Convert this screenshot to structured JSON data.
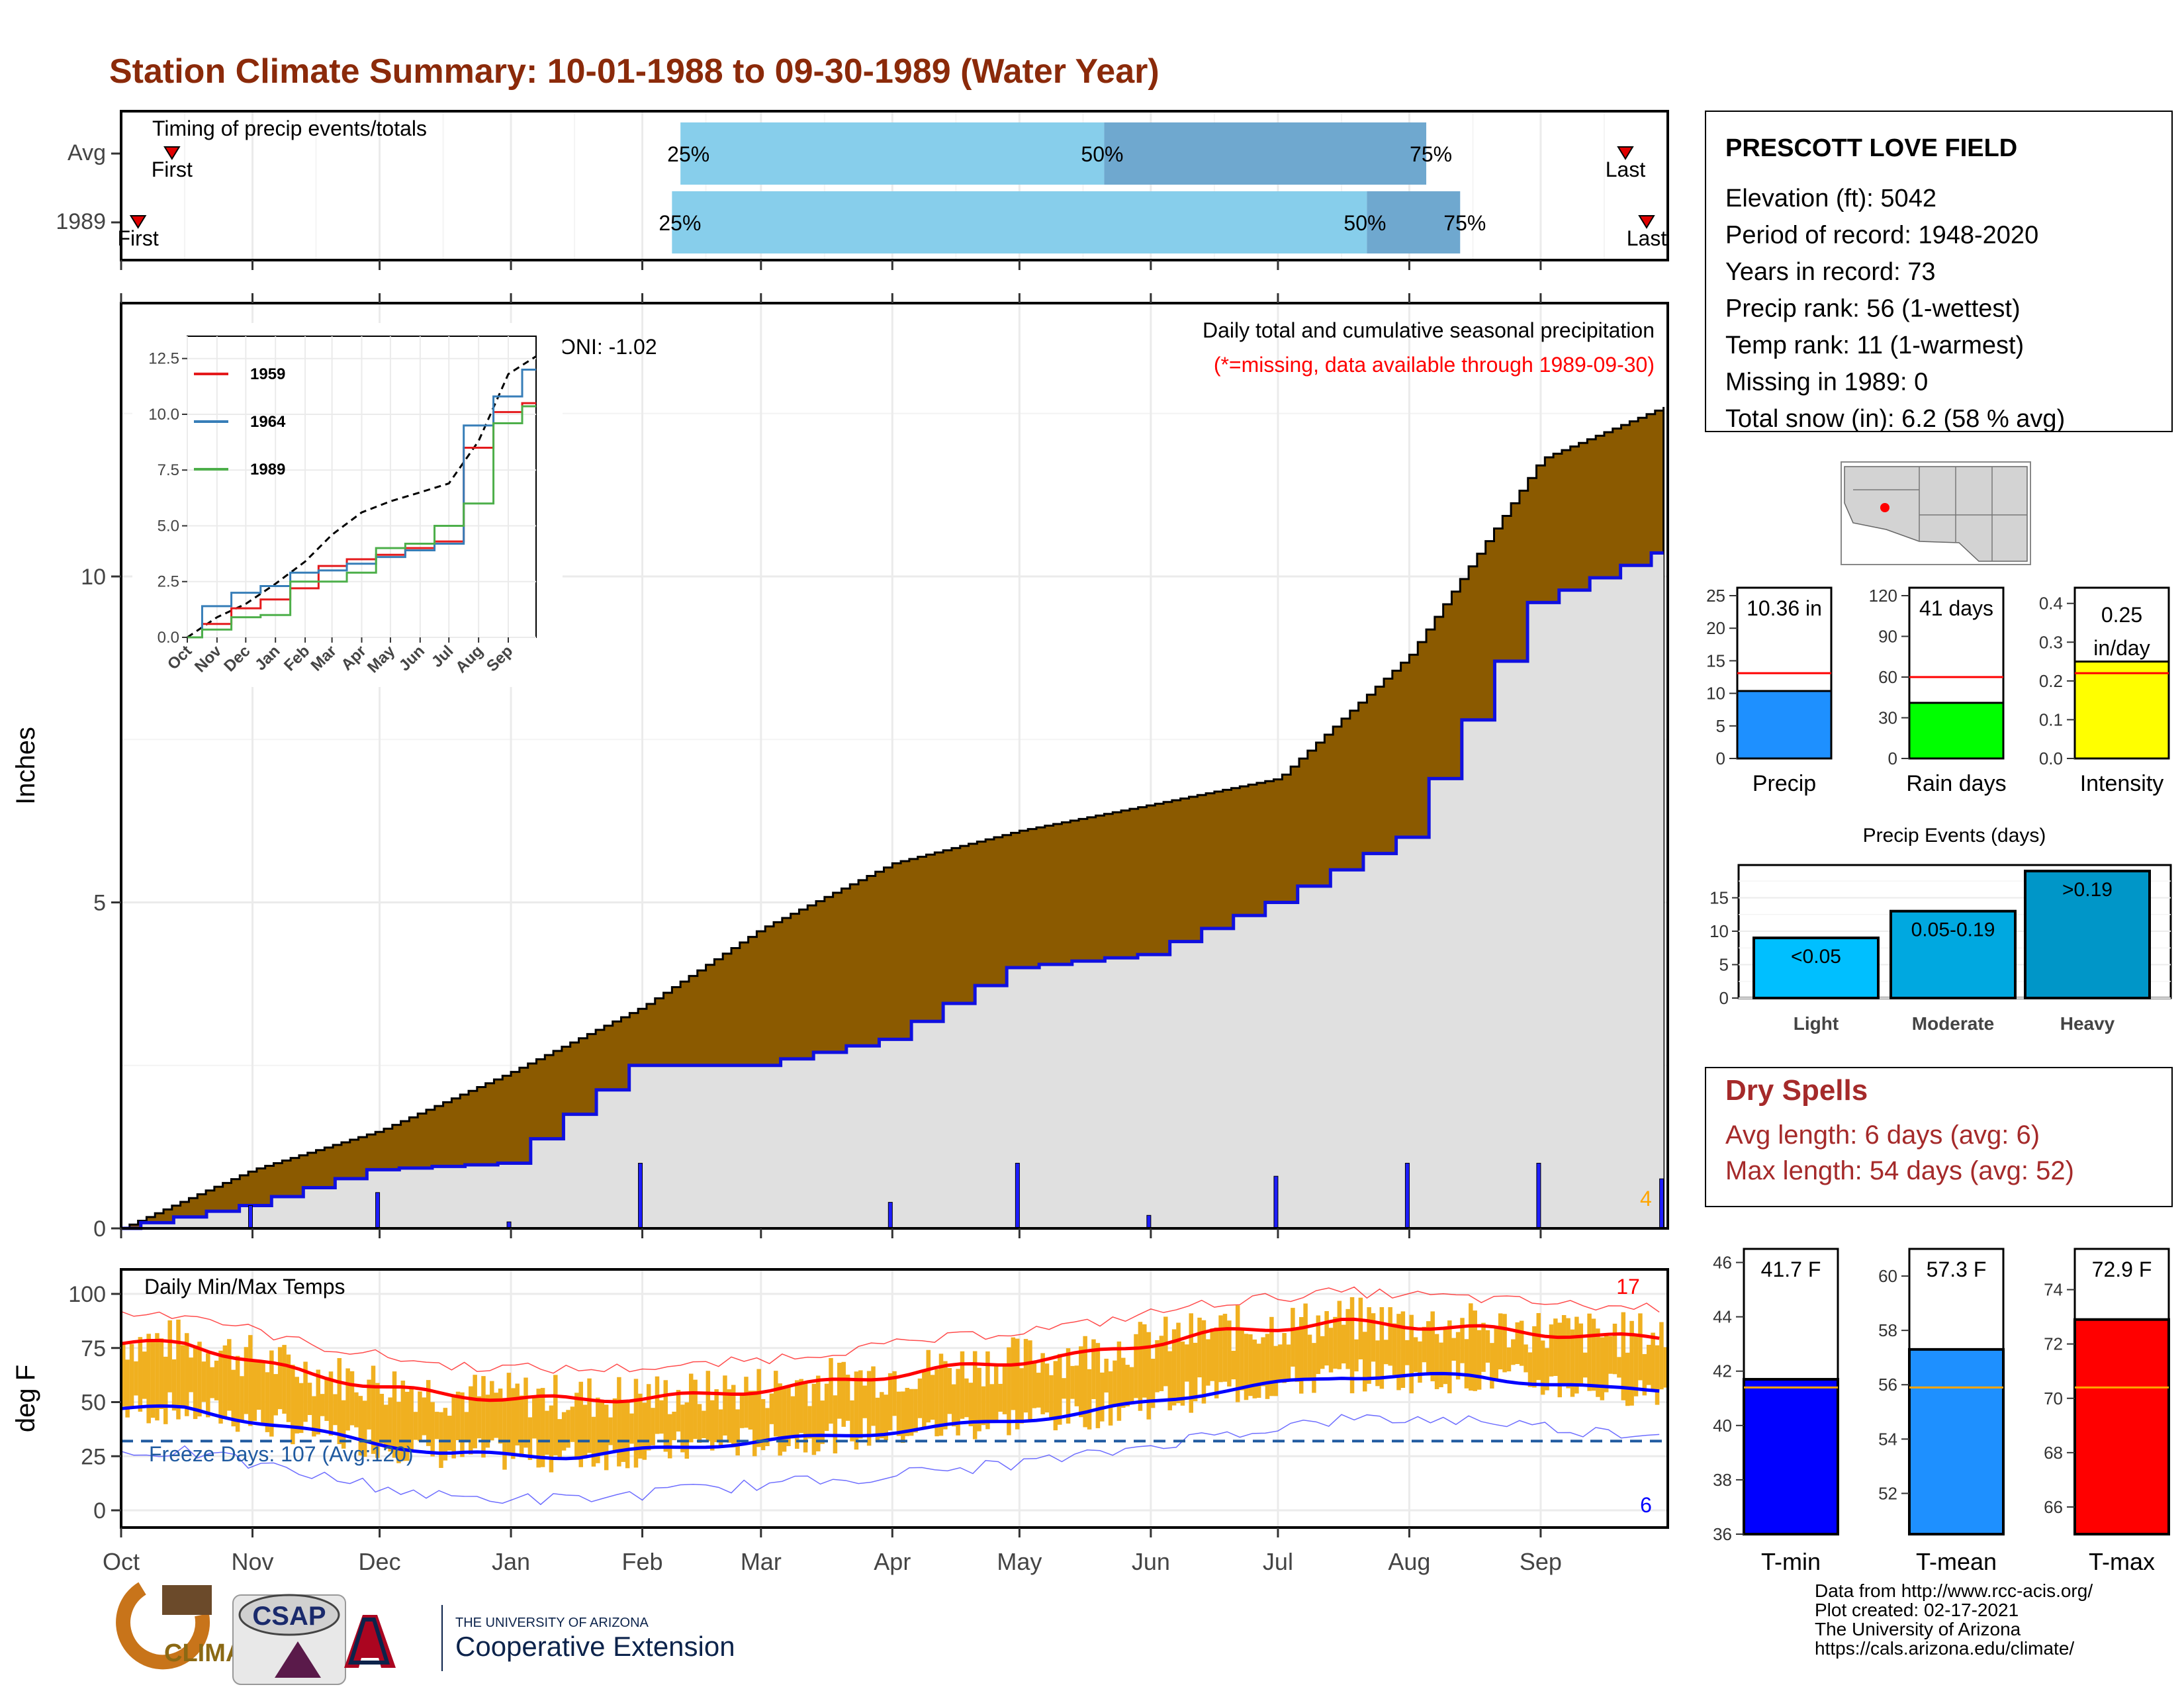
{
  "title": "Station Climate Summary: 10-01-1988 to 09-30-1989 (Water Year)",
  "colors": {
    "title": "#8b2a0a",
    "cum_fill": "#8b5a00",
    "normal_fill": "#e0e0e0",
    "blue_line": "#1010e0",
    "bar_light": "#87ceeb",
    "bar_dark": "#6fa8cf",
    "tmin": "#0000ff",
    "tmean": "#1e90ff",
    "tmax": "#ff0000",
    "temp_bar": "#f0b020",
    "dry_spells": "#a52a2a"
  },
  "timing_panel": {
    "title": "Timing of precip events/totals",
    "rows": [
      {
        "label": "Avg",
        "first_label": "First",
        "last_label": "Last",
        "p25": "25%",
        "p50": "50%",
        "p75": "75%",
        "first_day": 12,
        "day25": 132,
        "day50": 232,
        "day75": 308,
        "last_day": 355
      },
      {
        "label": "1989",
        "first_label": "First",
        "last_label": "Last",
        "p25": "25%",
        "p50": "50%",
        "p75": "75%",
        "first_day": 4,
        "day25": 130,
        "day50": 294,
        "day75": 316,
        "last_day": 360
      }
    ]
  },
  "precip_panel": {
    "caption": "Daily total and cumulative seasonal precipitation",
    "missing_note": "(*=missing, data available through 1989-09-30)",
    "oni_label": "ONI: -1.02",
    "ylabel": "Inches",
    "y_ticks": [
      "0",
      "5",
      "10"
    ],
    "corner_count": "4",
    "month_labels": [
      "Oct",
      "Nov",
      "Dec",
      "Jan",
      "Feb",
      "Mar",
      "Apr",
      "May",
      "Jun",
      "Jul",
      "Aug",
      "Sep"
    ]
  },
  "inset": {
    "y_ticks": [
      "0.0",
      "2.5",
      "5.0",
      "7.5",
      "10.0",
      "12.5"
    ],
    "x_ticks": [
      "Oct",
      "Nov",
      "Dec",
      "Jan",
      "Feb",
      "Mar",
      "Apr",
      "May",
      "Jun",
      "Jul",
      "Aug",
      "Sep"
    ],
    "legend": [
      "1959",
      "1964",
      "1989"
    ]
  },
  "temp_panel": {
    "title": "Daily Min/Max Temps",
    "ylabel": "deg F",
    "y_ticks": [
      "0",
      "25",
      "50",
      "75",
      "100"
    ],
    "freeze_label": "Freeze Days: 107 (Avg:120)",
    "hot_count": "17",
    "cold_count": "6",
    "x_ticks": [
      "Oct",
      "Nov",
      "Dec",
      "Jan",
      "Feb",
      "Mar",
      "Apr",
      "May",
      "Jun",
      "Jul",
      "Aug",
      "Sep"
    ]
  },
  "station": {
    "name": "PRESCOTT LOVE FIELD",
    "lines": [
      "Elevation (ft): 5042",
      "Period of record: 1948-2020",
      "Years in record: 73",
      "Precip rank: 56 (1-wettest)",
      "Temp rank: 11 (1-warmest)",
      "Missing in 1989: 0",
      "Total snow (in): 6.2 (58 % avg)"
    ]
  },
  "summary_bars": [
    {
      "name": "Precip",
      "value_label": "10.36 in",
      "ticks": [
        "0",
        "5",
        "10",
        "15",
        "20",
        "25"
      ],
      "max": 25,
      "value": 10.36,
      "avg": 13.1,
      "color": "#1e90ff"
    },
    {
      "name": "Rain days",
      "value_label": "41 days",
      "ticks": [
        "0",
        "30",
        "60",
        "90",
        "120"
      ],
      "max": 120,
      "value": 41,
      "avg": 60,
      "color": "#00ff00"
    },
    {
      "name": "Intensity",
      "value_label": "0.25 in/day",
      "ticks": [
        "0.0",
        "0.1",
        "0.2",
        "0.3",
        "0.4"
      ],
      "max": 0.42,
      "value": 0.25,
      "avg": 0.22,
      "color": "#ffff00"
    }
  ],
  "precip_events": {
    "title": "Precip Events (days)",
    "ticks": [
      "0",
      "5",
      "10",
      "15"
    ],
    "categories": [
      "Light",
      "Moderate",
      "Heavy"
    ],
    "bar_labels": [
      "<0.05",
      "0.05-0.19",
      ">0.19"
    ],
    "values": [
      9,
      13,
      19
    ],
    "colors": [
      "#00bfff",
      "#00a8e0",
      "#0096c8"
    ]
  },
  "dry_spells": {
    "title": "Dry Spells",
    "lines": [
      "Avg length: 6 days (avg: 6)",
      "Max length: 54 days (avg: 52)"
    ]
  },
  "temp_bars": [
    {
      "name": "T-min",
      "value_label": "41.7 F",
      "ticks": [
        "36",
        "38",
        "40",
        "42",
        "44",
        "46"
      ],
      "ymin": 36,
      "ymax": 46.5,
      "value": 41.7,
      "avg": 41.4,
      "color": "#0000ff"
    },
    {
      "name": "T-mean",
      "value_label": "57.3 F",
      "ticks": [
        "52",
        "54",
        "56",
        "58",
        "60"
      ],
      "ymin": 50.5,
      "ymax": 61,
      "value": 57.3,
      "avg": 55.9,
      "color": "#1e90ff"
    },
    {
      "name": "T-max",
      "value_label": "72.9 F",
      "ticks": [
        "66",
        "68",
        "70",
        "72",
        "74"
      ],
      "ymin": 65,
      "ymax": 75.5,
      "value": 72.9,
      "avg": 70.4,
      "color": "#ff0000"
    }
  ],
  "footer": {
    "lines": [
      "Data from http://www.rcc-acis.org/",
      "Plot created: 02-17-2021",
      "The University of Arizona",
      "https://cals.arizona.edu/climate/"
    ],
    "logo_climas": "CLIMAS",
    "logo_csap": "CSAP",
    "ua_small": "THE UNIVERSITY OF ARIZONA",
    "ua_big": "Cooperative Extension"
  },
  "chart_data": {
    "type": "area",
    "title": "Station Climate Summary: 10-01-1988 to 09-30-1989 (Water Year)",
    "ylabel": "Inches",
    "ylim": [
      0,
      14
    ],
    "x_dates": [
      "1988-10-01",
      "1988-11-01",
      "1988-12-01",
      "1989-01-01",
      "1989-02-01",
      "1989-03-01",
      "1989-04-01",
      "1989-05-01",
      "1989-06-01",
      "1989-07-01",
      "1989-08-01",
      "1989-09-01",
      "1989-09-30"
    ],
    "series": [
      {
        "name": "cumulative",
        "values": [
          0,
          0.9,
          1.5,
          2.4,
          3.4,
          4.6,
          5.6,
          6.1,
          6.5,
          6.9,
          8.8,
          11.8,
          12.6
        ]
      },
      {
        "name": "1989",
        "values": [
          0,
          0.35,
          0.9,
          1.0,
          2.5,
          2.5,
          2.9,
          4.0,
          4.2,
          5.0,
          6.0,
          9.6,
          10.36
        ]
      }
    ],
    "temperature": {
      "months": [
        "Oct",
        "Nov",
        "Dec",
        "Jan",
        "Feb",
        "Mar",
        "Apr",
        "May",
        "Jun",
        "Jul",
        "Aug",
        "Sep"
      ],
      "avg_max": [
        77,
        62,
        53,
        51,
        53,
        59,
        66,
        72,
        82,
        87,
        84,
        80
      ],
      "avg_min": [
        47,
        36,
        26,
        25,
        30,
        34,
        39,
        45,
        55,
        62,
        62,
        56
      ],
      "ylim": [
        -10,
        110
      ],
      "freeze_threshold": 32
    },
    "inset_series": [
      {
        "name": "1959",
        "values": [
          0,
          0.6,
          1.3,
          1.7,
          2.2,
          3.2,
          3.5,
          3.7,
          4.0,
          4.3,
          8.5,
          10.1,
          10.5
        ]
      },
      {
        "name": "1964",
        "values": [
          0,
          1.4,
          2.0,
          2.3,
          2.9,
          3.0,
          3.3,
          3.6,
          3.9,
          4.2,
          9.5,
          10.8,
          12.0
        ]
      },
      {
        "name": "1989",
        "values": [
          0,
          0.35,
          0.9,
          1.0,
          2.5,
          2.5,
          2.9,
          4.0,
          4.2,
          5.0,
          6.0,
          9.6,
          10.36
        ]
      }
    ]
  }
}
